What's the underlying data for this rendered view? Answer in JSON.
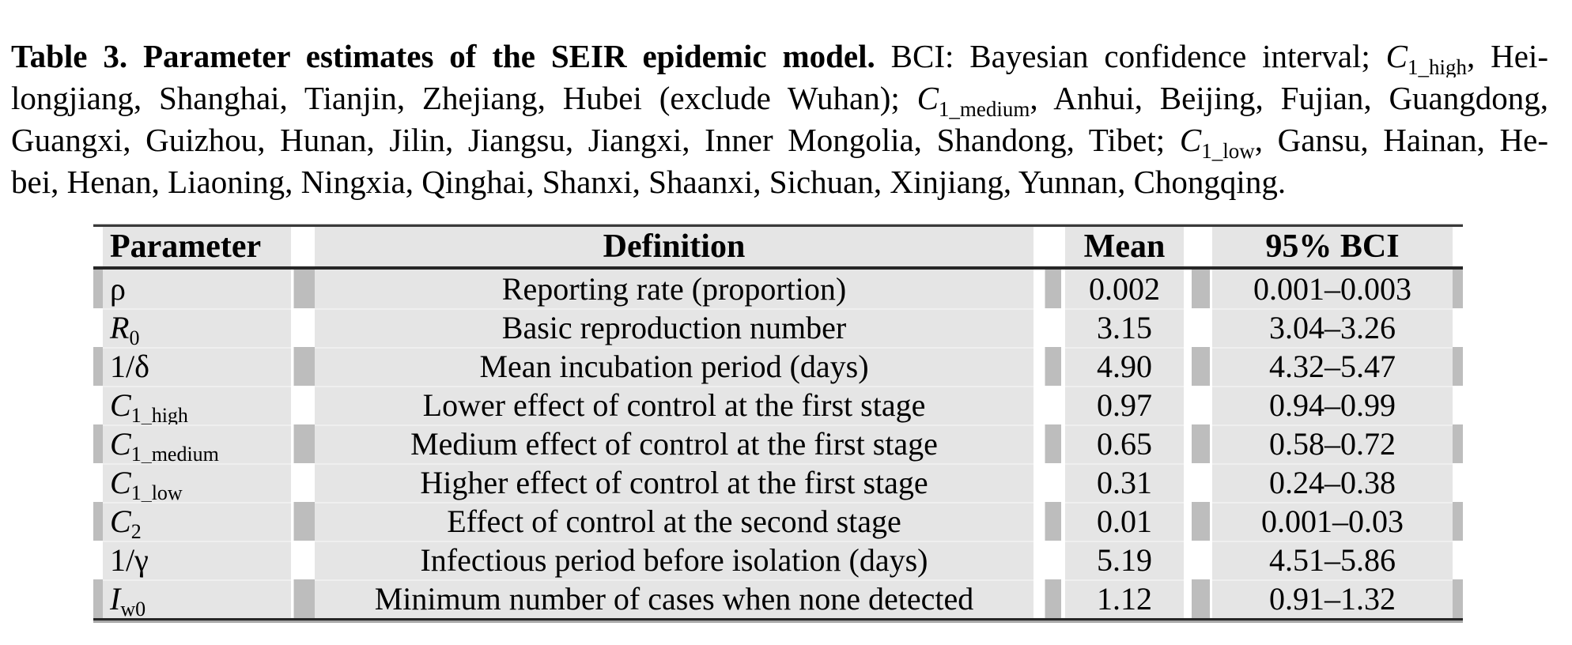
{
  "caption": {
    "line1": {
      "bold": "Table 3. Parameter estimates of the SEIR epidemic model.",
      "normal1": " BCI: Bayesian confidence interval; ",
      "var": "C",
      "sub": "1_high",
      "normal2": ", Hei-"
    },
    "line2": {
      "normal1": "longjiang, Shanghai, Tianjin, Zhejiang, Hubei (exclude Wuhan); ",
      "var": "C",
      "sub": "1_medium",
      "normal2": ", Anhui, Beijing, Fujian, Guangdong,"
    },
    "line3": {
      "normal1": "Guangxi, Guizhou, Hunan, Jilin, Jiangsu, Jiangxi, Inner Mongolia, Shandong, Tibet; ",
      "var": "C",
      "sub": "1_low",
      "normal2": ", Gansu, Hainan, He-"
    },
    "line4": {
      "normal1": "bei, Henan, Liaoning, Ningxia, Qinghai, Shanxi, Shaanxi, Sichuan, Xinjiang, Yunnan, Chongqing."
    }
  },
  "table": {
    "headers": [
      "Parameter",
      "Definition",
      "Mean",
      "95% BCI"
    ],
    "rows": [
      {
        "prefix": "",
        "main": "ρ",
        "sub": "",
        "definition": "Reporting rate (proportion)",
        "mean": "0.002",
        "bci": "0.001–0.003"
      },
      {
        "prefix": "",
        "main": "R",
        "sub": "0",
        "definition": "Basic reproduction number",
        "mean": "3.15",
        "bci": "3.04–3.26"
      },
      {
        "prefix": "1/",
        "main": "δ",
        "sub": "",
        "definition": "Mean incubation period (days)",
        "mean": "4.90",
        "bci": "4.32–5.47"
      },
      {
        "prefix": "",
        "main": "C",
        "sub": "1_high",
        "definition": "Lower effect of control at the first stage",
        "mean": "0.97",
        "bci": "0.94–0.99"
      },
      {
        "prefix": "",
        "main": "C",
        "sub": "1_medium",
        "definition": "Medium effect of control at the first stage",
        "mean": "0.65",
        "bci": "0.58–0.72"
      },
      {
        "prefix": "",
        "main": "C",
        "sub": "1_low",
        "definition": "Higher effect of control at the first stage",
        "mean": "0.31",
        "bci": "0.24–0.38"
      },
      {
        "prefix": "",
        "main": "C",
        "sub": "2",
        "definition": "Effect of control at the second stage",
        "mean": "0.01",
        "bci": "0.001–0.03"
      },
      {
        "prefix": "1/",
        "main": "γ",
        "sub": "",
        "definition": "Infectious period before isolation (days)",
        "mean": "5.19",
        "bci": "4.51–5.86"
      },
      {
        "prefix": "",
        "main": "I",
        "sub": "w0",
        "definition": "Minimum number of cases when none detected",
        "mean": "1.12",
        "bci": "0.91–1.32"
      }
    ]
  },
  "colors": {
    "cell_background": "#e5e5e5",
    "gutter_strip": "#bdbdbd",
    "rule": "#262626",
    "text": "#000000",
    "page_background": "#ffffff"
  }
}
